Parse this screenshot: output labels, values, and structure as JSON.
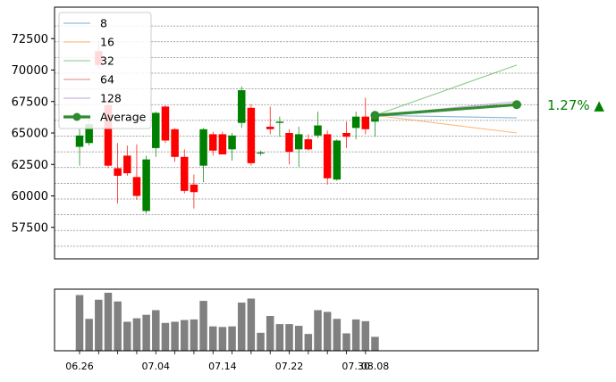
{
  "chart_data": [
    {
      "type": "candlestick",
      "panel": "price",
      "ylim": [
        55000,
        75000
      ],
      "y_ticks": [
        57500,
        60000,
        62500,
        65000,
        67500,
        70000,
        72500
      ],
      "grid": true,
      "legend_placement": "top-left",
      "colors": {
        "up": "#008000",
        "down": "#ff0000",
        "grid": "#888888"
      },
      "candles": [
        {
          "o": 63900,
          "h": 65300,
          "l": 62400,
          "c": 64800
        },
        {
          "o": 64200,
          "h": 66200,
          "l": 64000,
          "c": 65700
        },
        {
          "o": 71500,
          "h": 72300,
          "l": 70100,
          "c": 70400
        },
        {
          "o": 67200,
          "h": 67800,
          "l": 62200,
          "c": 62400
        },
        {
          "o": 62200,
          "h": 64200,
          "l": 59400,
          "c": 61600
        },
        {
          "o": 63200,
          "h": 64000,
          "l": 61600,
          "c": 61800
        },
        {
          "o": 61500,
          "h": 64100,
          "l": 59700,
          "c": 60000
        },
        {
          "o": 58800,
          "h": 63200,
          "l": 58600,
          "c": 62900
        },
        {
          "o": 63800,
          "h": 66700,
          "l": 63100,
          "c": 66600
        },
        {
          "o": 67100,
          "h": 67200,
          "l": 64200,
          "c": 64400
        },
        {
          "o": 65300,
          "h": 65400,
          "l": 62700,
          "c": 63100
        },
        {
          "o": 63100,
          "h": 63700,
          "l": 60200,
          "c": 60400
        },
        {
          "o": 60900,
          "h": 61700,
          "l": 59000,
          "c": 60300
        },
        {
          "o": 62400,
          "h": 65400,
          "l": 61100,
          "c": 65300
        },
        {
          "o": 64900,
          "h": 65100,
          "l": 63200,
          "c": 63600
        },
        {
          "o": 64900,
          "h": 65100,
          "l": 63300,
          "c": 63300
        },
        {
          "o": 63700,
          "h": 65000,
          "l": 62800,
          "c": 64800
        },
        {
          "o": 65800,
          "h": 68700,
          "l": 65400,
          "c": 68400
        },
        {
          "o": 67000,
          "h": 67300,
          "l": 62400,
          "c": 62600
        },
        {
          "o": 63400,
          "h": 63600,
          "l": 63200,
          "c": 63450
        },
        {
          "o": 65500,
          "h": 67100,
          "l": 64900,
          "c": 65300
        },
        {
          "o": 65800,
          "h": 66300,
          "l": 64700,
          "c": 65900
        },
        {
          "o": 65000,
          "h": 65300,
          "l": 62500,
          "c": 63500
        },
        {
          "o": 63700,
          "h": 65500,
          "l": 62300,
          "c": 64900
        },
        {
          "o": 64500,
          "h": 64900,
          "l": 63600,
          "c": 63700
        },
        {
          "o": 64800,
          "h": 66700,
          "l": 64600,
          "c": 65600
        },
        {
          "o": 64900,
          "h": 65200,
          "l": 60900,
          "c": 61400
        },
        {
          "o": 61300,
          "h": 64500,
          "l": 61200,
          "c": 64400
        },
        {
          "o": 65000,
          "h": 65900,
          "l": 63800,
          "c": 64700
        },
        {
          "o": 65400,
          "h": 66700,
          "l": 64500,
          "c": 66300
        },
        {
          "o": 66300,
          "h": 67800,
          "l": 64900,
          "c": 65300
        },
        {
          "o": 65900,
          "h": 66500,
          "l": 64700,
          "c": 66400
        }
      ],
      "projection": {
        "start": 66400,
        "series": [
          {
            "name": "8",
            "end": 66200,
            "color": "#1f77b4"
          },
          {
            "name": "16",
            "end": 65000,
            "color": "#ff7f0e"
          },
          {
            "name": "32",
            "end": 70400,
            "color": "#2ca02c"
          },
          {
            "name": "64",
            "end": 67300,
            "color": "#d62728"
          },
          {
            "name": "128",
            "end": 67500,
            "color": "#9467bd"
          },
          {
            "name": "Average",
            "end": 67250,
            "color": "#2e8b2e"
          }
        ]
      },
      "annotation": {
        "text": "1.27% ▲",
        "color": "#008000"
      }
    },
    {
      "type": "bar",
      "panel": "volume",
      "color": "#808080",
      "values": [
        96,
        55,
        88,
        100,
        85,
        50,
        56,
        62,
        70,
        48,
        50,
        53,
        54,
        86,
        42,
        41,
        42,
        83,
        90,
        31,
        60,
        46,
        46,
        43,
        29,
        70,
        67,
        55,
        30,
        54,
        51,
        24
      ],
      "x_tick_labels": [
        "06.26",
        "07.04",
        "07.14",
        "07.22",
        "07.30",
        "08.08"
      ]
    }
  ]
}
